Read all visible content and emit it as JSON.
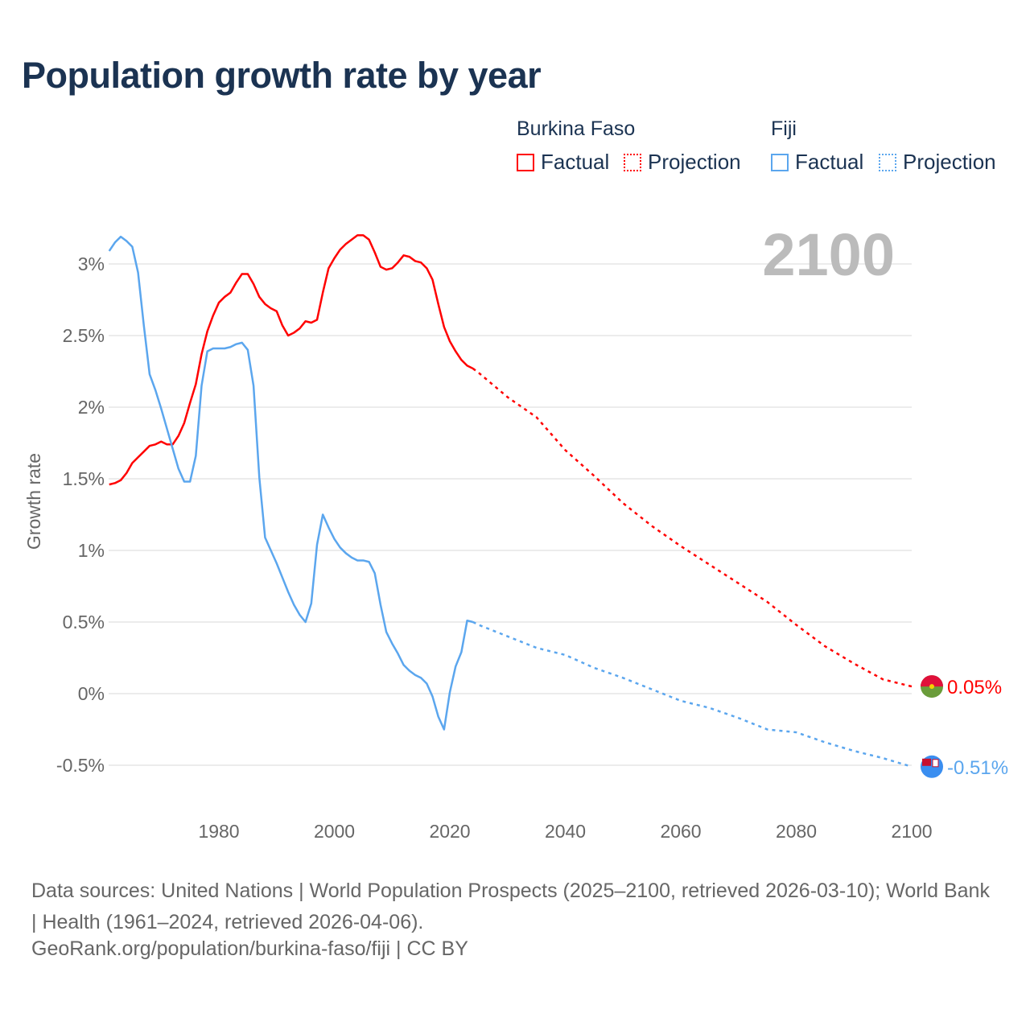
{
  "title": "Population growth rate by year",
  "legend": {
    "groups": [
      {
        "name": "Burkina Faso",
        "factual": "Factual",
        "projection": "Projection",
        "color": "#ff0000"
      },
      {
        "name": "Fiji",
        "factual": "Factual",
        "projection": "Projection",
        "color": "#5ba6ee"
      }
    ]
  },
  "year_badge": "2100",
  "footer": {
    "sources": "Data sources: United Nations | World Population Prospects (2025–2100, retrieved 2026-03-10); World Bank | Health (1961–2024, retrieved 2026-04-06).",
    "credit": "GeoRank.org/population/burkina-faso/fiji | CC BY"
  },
  "chart_data": {
    "type": "line",
    "title": "Population growth rate by year",
    "xlabel": "",
    "ylabel": "Growth rate",
    "xlim": [
      1961,
      2100
    ],
    "ylim": [
      -0.7,
      3.3
    ],
    "x_ticks": [
      "1980",
      "2000",
      "2020",
      "2040",
      "2060",
      "2080",
      "2100"
    ],
    "y_ticks": [
      "-0.5%",
      "0%",
      "0.5%",
      "1%",
      "1.5%",
      "2%",
      "2.5%",
      "3%"
    ],
    "grid": true,
    "legend_position": "top-right",
    "series": [
      {
        "name": "Burkina Faso",
        "color": "#ff0000",
        "end_label": "0.05%",
        "factual_start": 1961,
        "factual": [
          1.46,
          1.47,
          1.49,
          1.54,
          1.61,
          1.65,
          1.69,
          1.73,
          1.74,
          1.76,
          1.74,
          1.74,
          1.8,
          1.89,
          2.03,
          2.16,
          2.37,
          2.53,
          2.64,
          2.73,
          2.77,
          2.8,
          2.87,
          2.93,
          2.93,
          2.86,
          2.77,
          2.72,
          2.69,
          2.67,
          2.57,
          2.5,
          2.52,
          2.55,
          2.6,
          2.59,
          2.61,
          2.8,
          2.97,
          3.04,
          3.1,
          3.14,
          3.17,
          3.2,
          3.2,
          3.17,
          3.08,
          2.98,
          2.96,
          2.97,
          3.01,
          3.06,
          3.05,
          3.02,
          3.01,
          2.97,
          2.89,
          2.72,
          2.56,
          2.46,
          2.39,
          2.33,
          2.29,
          2.27
        ],
        "projection_years": [
          2025,
          2030,
          2035,
          2040,
          2045,
          2050,
          2055,
          2060,
          2065,
          2070,
          2075,
          2080,
          2085,
          2090,
          2095,
          2100
        ],
        "projection": [
          2.24,
          2.07,
          1.93,
          1.7,
          1.52,
          1.33,
          1.17,
          1.03,
          0.9,
          0.77,
          0.64,
          0.48,
          0.33,
          0.21,
          0.1,
          0.05
        ]
      },
      {
        "name": "Fiji",
        "color": "#5ba6ee",
        "end_label": "-0.51%",
        "factual_start": 1961,
        "factual": [
          3.09,
          3.15,
          3.19,
          3.16,
          3.12,
          2.94,
          2.57,
          2.23,
          2.12,
          1.99,
          1.85,
          1.71,
          1.57,
          1.48,
          1.48,
          1.66,
          2.15,
          2.39,
          2.41,
          2.41,
          2.41,
          2.42,
          2.44,
          2.45,
          2.4,
          2.15,
          1.51,
          1.09,
          1.0,
          0.91,
          0.81,
          0.71,
          0.62,
          0.55,
          0.5,
          0.63,
          1.04,
          1.25,
          1.16,
          1.08,
          1.02,
          0.98,
          0.95,
          0.93,
          0.93,
          0.92,
          0.84,
          0.62,
          0.43,
          0.35,
          0.28,
          0.2,
          0.16,
          0.13,
          0.11,
          0.07,
          -0.02,
          -0.16,
          -0.25,
          0.01,
          0.19,
          0.29,
          0.51,
          0.5
        ],
        "projection_years": [
          2025,
          2030,
          2035,
          2040,
          2045,
          2050,
          2055,
          2060,
          2065,
          2070,
          2075,
          2080,
          2085,
          2090,
          2095,
          2100
        ],
        "projection": [
          0.48,
          0.4,
          0.32,
          0.27,
          0.18,
          0.11,
          0.03,
          -0.05,
          -0.1,
          -0.17,
          -0.25,
          -0.27,
          -0.34,
          -0.4,
          -0.45,
          -0.51
        ]
      }
    ]
  }
}
